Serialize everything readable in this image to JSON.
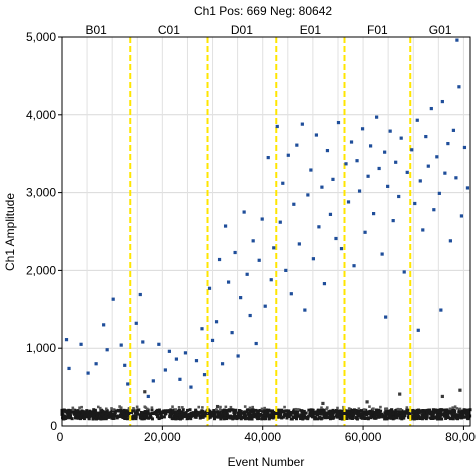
{
  "chart_data": {
    "type": "scatter",
    "title": "Ch1 Pos: 669 Neg: 80642",
    "xlabel": "Event Number",
    "ylabel": "Ch1 Amplitude",
    "xlim": [
      0,
      81311
    ],
    "ylim": [
      0,
      5000
    ],
    "x_ticks": [
      {
        "value": 20000,
        "label": "20,000"
      },
      {
        "value": 40000,
        "label": "40,000"
      },
      {
        "value": 60000,
        "label": "60,000"
      },
      {
        "value": 80000,
        "label": "80,000"
      }
    ],
    "y_ticks": [
      {
        "value": 1000,
        "label": "1,000"
      },
      {
        "value": 2000,
        "label": "2,000"
      },
      {
        "value": 3000,
        "label": "3,000"
      },
      {
        "value": 4000,
        "label": "4,000"
      },
      {
        "value": 5000,
        "label": "5,000"
      }
    ],
    "x_origin_label": "0",
    "y_origin_label": "0",
    "grid": true,
    "wells": [
      {
        "label": "B01",
        "start": 0,
        "end": 13600
      },
      {
        "label": "C01",
        "start": 13600,
        "end": 29000
      },
      {
        "label": "D01",
        "start": 29000,
        "end": 42700
      },
      {
        "label": "E01",
        "start": 42700,
        "end": 56300
      },
      {
        "label": "F01",
        "start": 56300,
        "end": 69400
      },
      {
        "label": "G01",
        "start": 69400,
        "end": 81311
      }
    ],
    "well_boundary_color": "#ffe600",
    "positive_color": "#1f4e9a",
    "negative_color": "#1a1a1a",
    "negative_band": {
      "center": 150,
      "spread": 60
    },
    "positive_points": [
      [
        900,
        1110
      ],
      [
        1400,
        740
      ],
      [
        3800,
        1050
      ],
      [
        5200,
        680
      ],
      [
        6800,
        800
      ],
      [
        8300,
        1300
      ],
      [
        9000,
        980
      ],
      [
        10200,
        1630
      ],
      [
        11800,
        1040
      ],
      [
        12500,
        780
      ],
      [
        13100,
        540
      ],
      [
        14800,
        1320
      ],
      [
        15600,
        1690
      ],
      [
        16100,
        1080
      ],
      [
        17200,
        380
      ],
      [
        18200,
        580
      ],
      [
        19300,
        1050
      ],
      [
        20600,
        720
      ],
      [
        21400,
        960
      ],
      [
        22800,
        860
      ],
      [
        23500,
        600
      ],
      [
        24600,
        940
      ],
      [
        25700,
        500
      ],
      [
        26800,
        840
      ],
      [
        27900,
        1250
      ],
      [
        28400,
        660
      ],
      [
        29400,
        1770
      ],
      [
        30000,
        1100
      ],
      [
        30800,
        1340
      ],
      [
        31400,
        2140
      ],
      [
        32000,
        800
      ],
      [
        32600,
        2570
      ],
      [
        33200,
        1850
      ],
      [
        33900,
        1200
      ],
      [
        34500,
        2230
      ],
      [
        35100,
        900
      ],
      [
        35600,
        1650
      ],
      [
        36300,
        2750
      ],
      [
        36900,
        1950
      ],
      [
        37500,
        1420
      ],
      [
        38100,
        2380
      ],
      [
        38700,
        1060
      ],
      [
        39300,
        2130
      ],
      [
        39900,
        2660
      ],
      [
        40500,
        1540
      ],
      [
        41100,
        3450
      ],
      [
        41700,
        1880
      ],
      [
        42200,
        2290
      ],
      [
        42900,
        3850
      ],
      [
        43500,
        2620
      ],
      [
        44000,
        3120
      ],
      [
        44600,
        2000
      ],
      [
        45100,
        3480
      ],
      [
        45700,
        1700
      ],
      [
        46200,
        2850
      ],
      [
        46800,
        3610
      ],
      [
        47300,
        2340
      ],
      [
        47900,
        3880
      ],
      [
        48400,
        1490
      ],
      [
        49000,
        2970
      ],
      [
        49600,
        3290
      ],
      [
        50100,
        2150
      ],
      [
        50700,
        3740
      ],
      [
        51200,
        2560
      ],
      [
        51800,
        3070
      ],
      [
        52300,
        1830
      ],
      [
        52900,
        3540
      ],
      [
        53500,
        2720
      ],
      [
        54000,
        3170
      ],
      [
        54600,
        2410
      ],
      [
        55100,
        3900
      ],
      [
        55700,
        2280
      ],
      [
        56600,
        3370
      ],
      [
        57100,
        2880
      ],
      [
        57700,
        3650
      ],
      [
        58200,
        2060
      ],
      [
        58800,
        3410
      ],
      [
        59300,
        3020
      ],
      [
        59900,
        3820
      ],
      [
        60400,
        2490
      ],
      [
        61000,
        3210
      ],
      [
        61500,
        3600
      ],
      [
        62100,
        2730
      ],
      [
        62700,
        3970
      ],
      [
        63200,
        3310
      ],
      [
        63800,
        2210
      ],
      [
        64300,
        3520
      ],
      [
        64900,
        3080
      ],
      [
        65400,
        3790
      ],
      [
        66000,
        2640
      ],
      [
        66500,
        3390
      ],
      [
        67100,
        2950
      ],
      [
        67600,
        3700
      ],
      [
        68200,
        1980
      ],
      [
        68800,
        3260
      ],
      [
        69700,
        3550
      ],
      [
        70300,
        2860
      ],
      [
        70800,
        3930
      ],
      [
        71400,
        3150
      ],
      [
        71900,
        2520
      ],
      [
        72500,
        3720
      ],
      [
        73000,
        3340
      ],
      [
        73600,
        4080
      ],
      [
        74100,
        2780
      ],
      [
        74700,
        3460
      ],
      [
        75200,
        2990
      ],
      [
        75800,
        4170
      ],
      [
        76300,
        3250
      ],
      [
        76900,
        3630
      ],
      [
        77400,
        2380
      ],
      [
        78000,
        3800
      ],
      [
        78500,
        3190
      ],
      [
        79100,
        4360
      ],
      [
        79600,
        2700
      ],
      [
        80200,
        3580
      ],
      [
        80800,
        3060
      ],
      [
        78700,
        4960
      ],
      [
        75500,
        1490
      ],
      [
        71000,
        1230
      ],
      [
        64500,
        1400
      ]
    ],
    "outlier_points": [
      [
        16500,
        440
      ],
      [
        31000,
        250
      ],
      [
        52000,
        290
      ],
      [
        60800,
        310
      ],
      [
        67300,
        410
      ],
      [
        75800,
        380
      ],
      [
        79300,
        460
      ]
    ]
  }
}
